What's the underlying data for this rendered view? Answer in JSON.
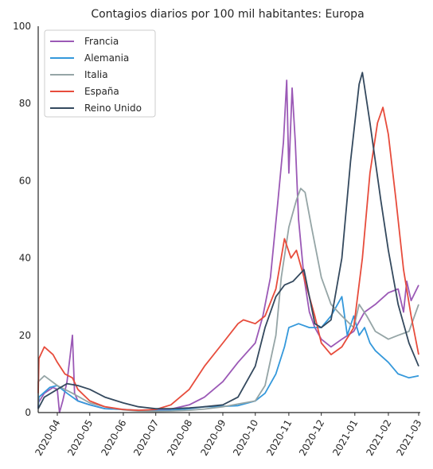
{
  "chart_data": {
    "type": "line",
    "title": "Contagios diarios por 100 mil habitantes: Europa",
    "xlabel": "",
    "ylabel": "",
    "ylim": [
      0,
      100
    ],
    "y_ticks": [
      0,
      20,
      40,
      60,
      80,
      100
    ],
    "x_ticks": [
      "2020-04",
      "2020-05",
      "2020-06",
      "2020-07",
      "2020-08",
      "2020-09",
      "2020-10",
      "2020-11",
      "2020-12",
      "2021-01",
      "2021-02",
      "2021-03"
    ],
    "grid": false,
    "legend_position": "top-left",
    "series": [
      {
        "name": "Francia",
        "color": "#9b59b6",
        "points": [
          [
            "2020-03-01",
            1
          ],
          [
            "2020-03-10",
            2.5
          ],
          [
            "2020-03-20",
            5
          ],
          [
            "2020-03-28",
            6.5
          ],
          [
            "2020-04-01",
            6
          ],
          [
            "2020-04-03",
            0
          ],
          [
            "2020-04-06",
            3
          ],
          [
            "2020-04-10",
            8
          ],
          [
            "2020-04-13",
            15
          ],
          [
            "2020-04-15",
            20
          ],
          [
            "2020-04-17",
            5
          ],
          [
            "2020-04-20",
            3
          ],
          [
            "2020-05-01",
            2
          ],
          [
            "2020-05-15",
            1
          ],
          [
            "2020-06-01",
            0.8
          ],
          [
            "2020-06-15",
            0.5
          ],
          [
            "2020-07-01",
            0.6
          ],
          [
            "2020-07-15",
            0.9
          ],
          [
            "2020-08-01",
            2
          ],
          [
            "2020-08-15",
            4
          ],
          [
            "2020-09-01",
            8
          ],
          [
            "2020-09-15",
            13
          ],
          [
            "2020-10-01",
            18
          ],
          [
            "2020-10-08",
            25
          ],
          [
            "2020-10-15",
            35
          ],
          [
            "2020-10-22",
            55
          ],
          [
            "2020-10-27",
            70
          ],
          [
            "2020-10-30",
            86
          ],
          [
            "2020-11-01",
            62
          ],
          [
            "2020-11-04",
            84
          ],
          [
            "2020-11-07",
            70
          ],
          [
            "2020-11-10",
            50
          ],
          [
            "2020-11-15",
            35
          ],
          [
            "2020-11-20",
            26
          ],
          [
            "2020-11-25",
            22
          ],
          [
            "2020-12-01",
            19
          ],
          [
            "2020-12-10",
            17
          ],
          [
            "2020-12-20",
            19
          ],
          [
            "2020-12-31",
            21
          ],
          [
            "2021-01-10",
            26
          ],
          [
            "2021-01-20",
            28
          ],
          [
            "2021-02-01",
            31
          ],
          [
            "2021-02-10",
            32
          ],
          [
            "2021-02-15",
            26
          ],
          [
            "2021-02-18",
            34
          ],
          [
            "2021-02-22",
            29
          ],
          [
            "2021-03-01",
            33
          ]
        ]
      },
      {
        "name": "Alemania",
        "color": "#3498db",
        "points": [
          [
            "2020-03-01",
            1
          ],
          [
            "2020-03-15",
            4
          ],
          [
            "2020-03-25",
            6.5
          ],
          [
            "2020-04-01",
            7
          ],
          [
            "2020-04-10",
            5
          ],
          [
            "2020-04-20",
            3
          ],
          [
            "2020-05-01",
            2
          ],
          [
            "2020-05-15",
            1
          ],
          [
            "2020-06-01",
            0.8
          ],
          [
            "2020-06-15",
            0.6
          ],
          [
            "2020-07-01",
            0.5
          ],
          [
            "2020-07-15",
            0.6
          ],
          [
            "2020-08-01",
            1
          ],
          [
            "2020-08-15",
            1.5
          ],
          [
            "2020-09-01",
            1.6
          ],
          [
            "2020-09-15",
            1.8
          ],
          [
            "2020-10-01",
            3
          ],
          [
            "2020-10-10",
            5
          ],
          [
            "2020-10-20",
            10
          ],
          [
            "2020-10-28",
            17
          ],
          [
            "2020-11-01",
            22
          ],
          [
            "2020-11-10",
            23
          ],
          [
            "2020-11-20",
            22
          ],
          [
            "2020-12-01",
            22
          ],
          [
            "2020-12-10",
            25
          ],
          [
            "2020-12-20",
            30
          ],
          [
            "2020-12-25",
            20
          ],
          [
            "2020-12-31",
            25
          ],
          [
            "2021-01-05",
            20
          ],
          [
            "2021-01-10",
            22
          ],
          [
            "2021-01-15",
            18
          ],
          [
            "2021-01-20",
            16
          ],
          [
            "2021-02-01",
            13
          ],
          [
            "2021-02-10",
            10
          ],
          [
            "2021-02-20",
            9
          ],
          [
            "2021-03-01",
            9.5
          ]
        ]
      },
      {
        "name": "Italia",
        "color": "#95a5a6",
        "points": [
          [
            "2020-03-01",
            2
          ],
          [
            "2020-03-10",
            8
          ],
          [
            "2020-03-20",
            9.5
          ],
          [
            "2020-04-01",
            7
          ],
          [
            "2020-04-15",
            5
          ],
          [
            "2020-05-01",
            2.5
          ],
          [
            "2020-05-15",
            1.5
          ],
          [
            "2020-06-01",
            0.7
          ],
          [
            "2020-06-15",
            0.4
          ],
          [
            "2020-07-01",
            0.3
          ],
          [
            "2020-07-15",
            0.4
          ],
          [
            "2020-08-01",
            0.6
          ],
          [
            "2020-08-15",
            0.9
          ],
          [
            "2020-09-01",
            1.5
          ],
          [
            "2020-09-15",
            2.2
          ],
          [
            "2020-10-01",
            3
          ],
          [
            "2020-10-10",
            7
          ],
          [
            "2020-10-20",
            20
          ],
          [
            "2020-10-25",
            35
          ],
          [
            "2020-11-01",
            48
          ],
          [
            "2020-11-08",
            55
          ],
          [
            "2020-11-12",
            58
          ],
          [
            "2020-11-16",
            57
          ],
          [
            "2020-11-22",
            48
          ],
          [
            "2020-12-01",
            35
          ],
          [
            "2020-12-10",
            28
          ],
          [
            "2020-12-20",
            25
          ],
          [
            "2020-12-31",
            22
          ],
          [
            "2021-01-05",
            28
          ],
          [
            "2021-01-12",
            25
          ],
          [
            "2021-01-20",
            21
          ],
          [
            "2021-02-01",
            19
          ],
          [
            "2021-02-10",
            20
          ],
          [
            "2021-02-20",
            21
          ],
          [
            "2021-03-01",
            28
          ]
        ]
      },
      {
        "name": "España",
        "color": "#e74c3c",
        "points": [
          [
            "2020-03-01",
            5
          ],
          [
            "2020-03-15",
            14
          ],
          [
            "2020-03-20",
            17
          ],
          [
            "2020-03-28",
            15
          ],
          [
            "2020-04-01",
            13
          ],
          [
            "2020-04-08",
            10
          ],
          [
            "2020-04-15",
            9
          ],
          [
            "2020-04-20",
            6
          ],
          [
            "2020-05-01",
            3
          ],
          [
            "2020-05-15",
            1.5
          ],
          [
            "2020-06-01",
            0.8
          ],
          [
            "2020-06-15",
            0.6
          ],
          [
            "2020-07-01",
            0.8
          ],
          [
            "2020-07-15",
            2
          ],
          [
            "2020-08-01",
            6
          ],
          [
            "2020-08-15",
            12
          ],
          [
            "2020-09-01",
            18
          ],
          [
            "2020-09-15",
            23
          ],
          [
            "2020-09-20",
            24
          ],
          [
            "2020-10-01",
            23
          ],
          [
            "2020-10-10",
            25
          ],
          [
            "2020-10-20",
            32
          ],
          [
            "2020-10-28",
            45
          ],
          [
            "2020-11-03",
            40
          ],
          [
            "2020-11-08",
            42
          ],
          [
            "2020-11-15",
            35
          ],
          [
            "2020-11-25",
            25
          ],
          [
            "2020-12-01",
            18
          ],
          [
            "2020-12-10",
            15
          ],
          [
            "2020-12-20",
            17
          ],
          [
            "2020-12-31",
            22
          ],
          [
            "2021-01-08",
            40
          ],
          [
            "2021-01-15",
            62
          ],
          [
            "2021-01-22",
            75
          ],
          [
            "2021-01-27",
            79
          ],
          [
            "2021-02-01",
            72
          ],
          [
            "2021-02-08",
            55
          ],
          [
            "2021-02-15",
            37
          ],
          [
            "2021-02-22",
            25
          ],
          [
            "2021-03-01",
            15
          ]
        ]
      },
      {
        "name": "Reino Unido",
        "color": "#34495e",
        "points": [
          [
            "2020-03-01",
            1
          ],
          [
            "2020-03-20",
            4
          ],
          [
            "2020-04-01",
            6
          ],
          [
            "2020-04-10",
            7.5
          ],
          [
            "2020-04-20",
            7
          ],
          [
            "2020-05-01",
            6
          ],
          [
            "2020-05-15",
            4
          ],
          [
            "2020-06-01",
            2.5
          ],
          [
            "2020-06-15",
            1.5
          ],
          [
            "2020-07-01",
            1
          ],
          [
            "2020-07-15",
            1
          ],
          [
            "2020-08-01",
            1.2
          ],
          [
            "2020-08-15",
            1.5
          ],
          [
            "2020-09-01",
            2
          ],
          [
            "2020-09-15",
            4
          ],
          [
            "2020-10-01",
            12
          ],
          [
            "2020-10-10",
            22
          ],
          [
            "2020-10-20",
            30
          ],
          [
            "2020-10-28",
            33
          ],
          [
            "2020-11-05",
            34
          ],
          [
            "2020-11-15",
            37
          ],
          [
            "2020-11-20",
            30
          ],
          [
            "2020-11-25",
            23
          ],
          [
            "2020-12-01",
            22
          ],
          [
            "2020-12-10",
            24
          ],
          [
            "2020-12-20",
            40
          ],
          [
            "2020-12-28",
            65
          ],
          [
            "2021-01-05",
            85
          ],
          [
            "2021-01-08",
            88
          ],
          [
            "2021-01-15",
            75
          ],
          [
            "2021-01-25",
            55
          ],
          [
            "2021-02-01",
            42
          ],
          [
            "2021-02-10",
            28
          ],
          [
            "2021-02-20",
            18
          ],
          [
            "2021-03-01",
            12
          ]
        ]
      }
    ]
  }
}
